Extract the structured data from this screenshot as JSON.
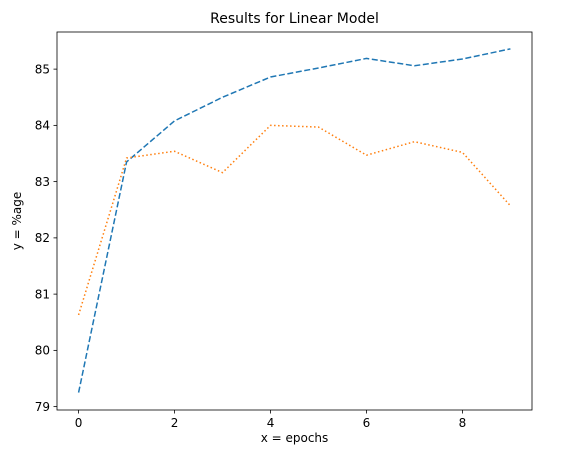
{
  "chart_data": {
    "type": "line",
    "title": "Results for Linear Model",
    "xlabel": "x = epochs",
    "ylabel": "y = %age",
    "x": [
      0,
      1,
      2,
      3,
      4,
      5,
      6,
      7,
      8,
      9
    ],
    "xlim": [
      -0.45,
      9.45
    ],
    "ylim": [
      78.94,
      85.66
    ],
    "xticks": [
      0,
      2,
      4,
      6,
      8
    ],
    "yticks": [
      79,
      80,
      81,
      82,
      83,
      84,
      85
    ],
    "grid": false,
    "series": [
      {
        "values": [
          79.25,
          83.35,
          84.08,
          84.5,
          84.86,
          85.02,
          85.19,
          85.06,
          85.18,
          85.36
        ],
        "color": "#1f77b4",
        "style": "dashed"
      },
      {
        "values": [
          80.63,
          83.42,
          83.54,
          83.16,
          84.0,
          83.97,
          83.47,
          83.71,
          83.52,
          82.57
        ],
        "color": "#ff7f0e",
        "style": "dotted"
      }
    ]
  }
}
